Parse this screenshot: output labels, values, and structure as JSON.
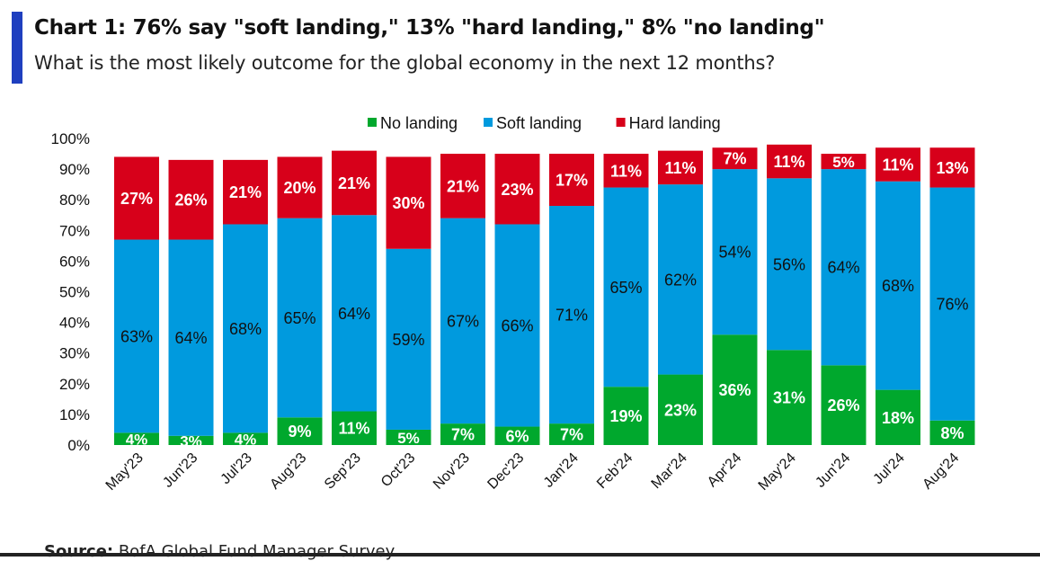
{
  "header": {
    "title": "Chart 1: 76% say \"soft landing,\" 13% \"hard landing,\" 8% \"no landing\"",
    "subtitle": "What is the most likely outcome for the global economy in the next 12 months?"
  },
  "source": {
    "label": "Source:",
    "text": " BofA Global Fund Manager Survey"
  },
  "colors": {
    "no_landing": "#00a82d",
    "soft_landing": "#009ade",
    "hard_landing": "#d7001a",
    "accent": "#1f3fbf"
  },
  "chart_data": {
    "type": "bar",
    "stacked": true,
    "title": "Chart 1: 76% say \"soft landing,\" 13% \"hard landing,\" 8% \"no landing\"",
    "xlabel": "",
    "ylabel": "",
    "ylim": [
      0,
      100
    ],
    "yticks": [
      "0%",
      "10%",
      "20%",
      "30%",
      "40%",
      "50%",
      "60%",
      "70%",
      "80%",
      "90%",
      "100%"
    ],
    "legend_position": "top-center",
    "categories": [
      "May'23",
      "Jun'23",
      "Jul'23",
      "Aug'23",
      "Sep'23",
      "Oct'23",
      "Nov'23",
      "Dec'23",
      "Jan'24",
      "Feb'24",
      "Mar'24",
      "Apr'24",
      "May'24",
      "Jun'24",
      "Jul'24",
      "Aug'24"
    ],
    "series": [
      {
        "name": "No landing",
        "color": "#00a82d",
        "values": [
          4,
          3,
          4,
          9,
          11,
          5,
          7,
          6,
          7,
          19,
          23,
          36,
          31,
          26,
          18,
          8
        ]
      },
      {
        "name": "Soft landing",
        "color": "#009ade",
        "values": [
          63,
          64,
          68,
          65,
          64,
          59,
          67,
          66,
          71,
          65,
          62,
          54,
          56,
          64,
          68,
          76
        ]
      },
      {
        "name": "Hard landing",
        "color": "#d7001a",
        "values": [
          27,
          26,
          21,
          20,
          21,
          30,
          21,
          23,
          17,
          11,
          11,
          7,
          11,
          5,
          11,
          13
        ]
      }
    ]
  }
}
